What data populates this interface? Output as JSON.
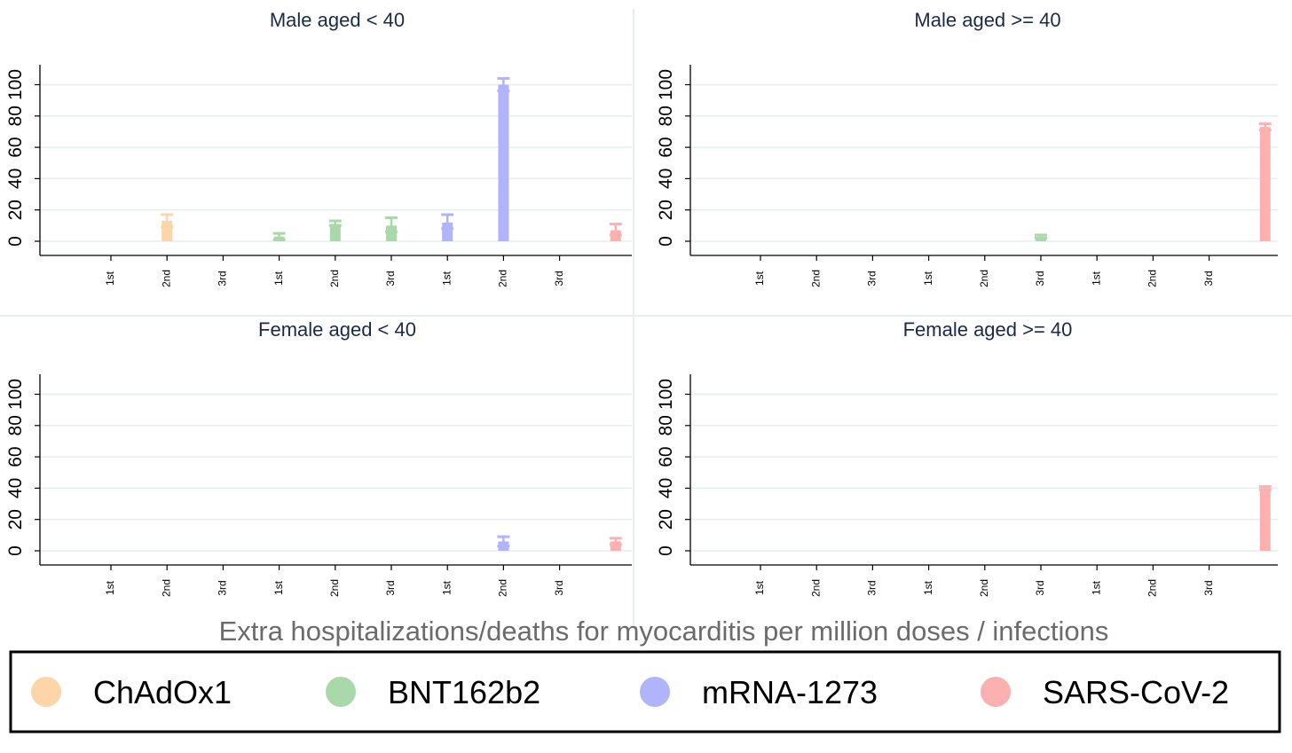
{
  "chart_data": {
    "type": "bar",
    "xlabel": "Extra hospitalizations/deaths for myocarditis per million doses / infections",
    "ylim": [
      0,
      110
    ],
    "yticks": [
      0,
      20,
      40,
      60,
      80,
      100
    ],
    "grid": true,
    "legend_placement": "bottom",
    "categories": [
      "1st",
      "2nd",
      "3rd",
      "1st",
      "2nd",
      "3rd",
      "1st",
      "2nd",
      "3rd",
      ""
    ],
    "series": [
      {
        "name": "ChAdOx1",
        "color": "#fdd5a8"
      },
      {
        "name": "BNT162b2",
        "color": "#a9d8ab"
      },
      {
        "name": "mRNA-1273",
        "color": "#b0b4fb"
      },
      {
        "name": "SARS-CoV-2",
        "color": "#fdb0b0"
      }
    ],
    "panels": [
      {
        "title": "Male aged < 40",
        "bars": [
          {
            "cat": 1,
            "series": 0,
            "value": 13,
            "lo": 9,
            "hi": 17
          },
          {
            "cat": 3,
            "series": 1,
            "value": 3,
            "lo": 1,
            "hi": 5
          },
          {
            "cat": 4,
            "series": 1,
            "value": 11,
            "lo": 10,
            "hi": 13
          },
          {
            "cat": 5,
            "series": 1,
            "value": 10,
            "lo": 6,
            "hi": 15
          },
          {
            "cat": 6,
            "series": 2,
            "value": 12,
            "lo": 8,
            "hi": 17
          },
          {
            "cat": 7,
            "series": 2,
            "value": 100,
            "lo": 96,
            "hi": 104
          },
          {
            "cat": 9,
            "series": 3,
            "value": 7,
            "lo": 4,
            "hi": 11
          }
        ]
      },
      {
        "title": "Male aged >= 40",
        "bars": [
          {
            "cat": 5,
            "series": 1,
            "value": 3,
            "lo": 2,
            "hi": 4
          },
          {
            "cat": 9,
            "series": 3,
            "value": 73,
            "lo": 71,
            "hi": 75
          }
        ]
      },
      {
        "title": "Female aged < 40",
        "bars": [
          {
            "cat": 7,
            "series": 2,
            "value": 6,
            "lo": 3,
            "hi": 9
          },
          {
            "cat": 9,
            "series": 3,
            "value": 6,
            "lo": 4,
            "hi": 8
          }
        ]
      },
      {
        "title": "Female aged >= 40",
        "bars": [
          {
            "cat": 9,
            "series": 3,
            "value": 40,
            "lo": 39,
            "hi": 41
          }
        ]
      }
    ]
  }
}
